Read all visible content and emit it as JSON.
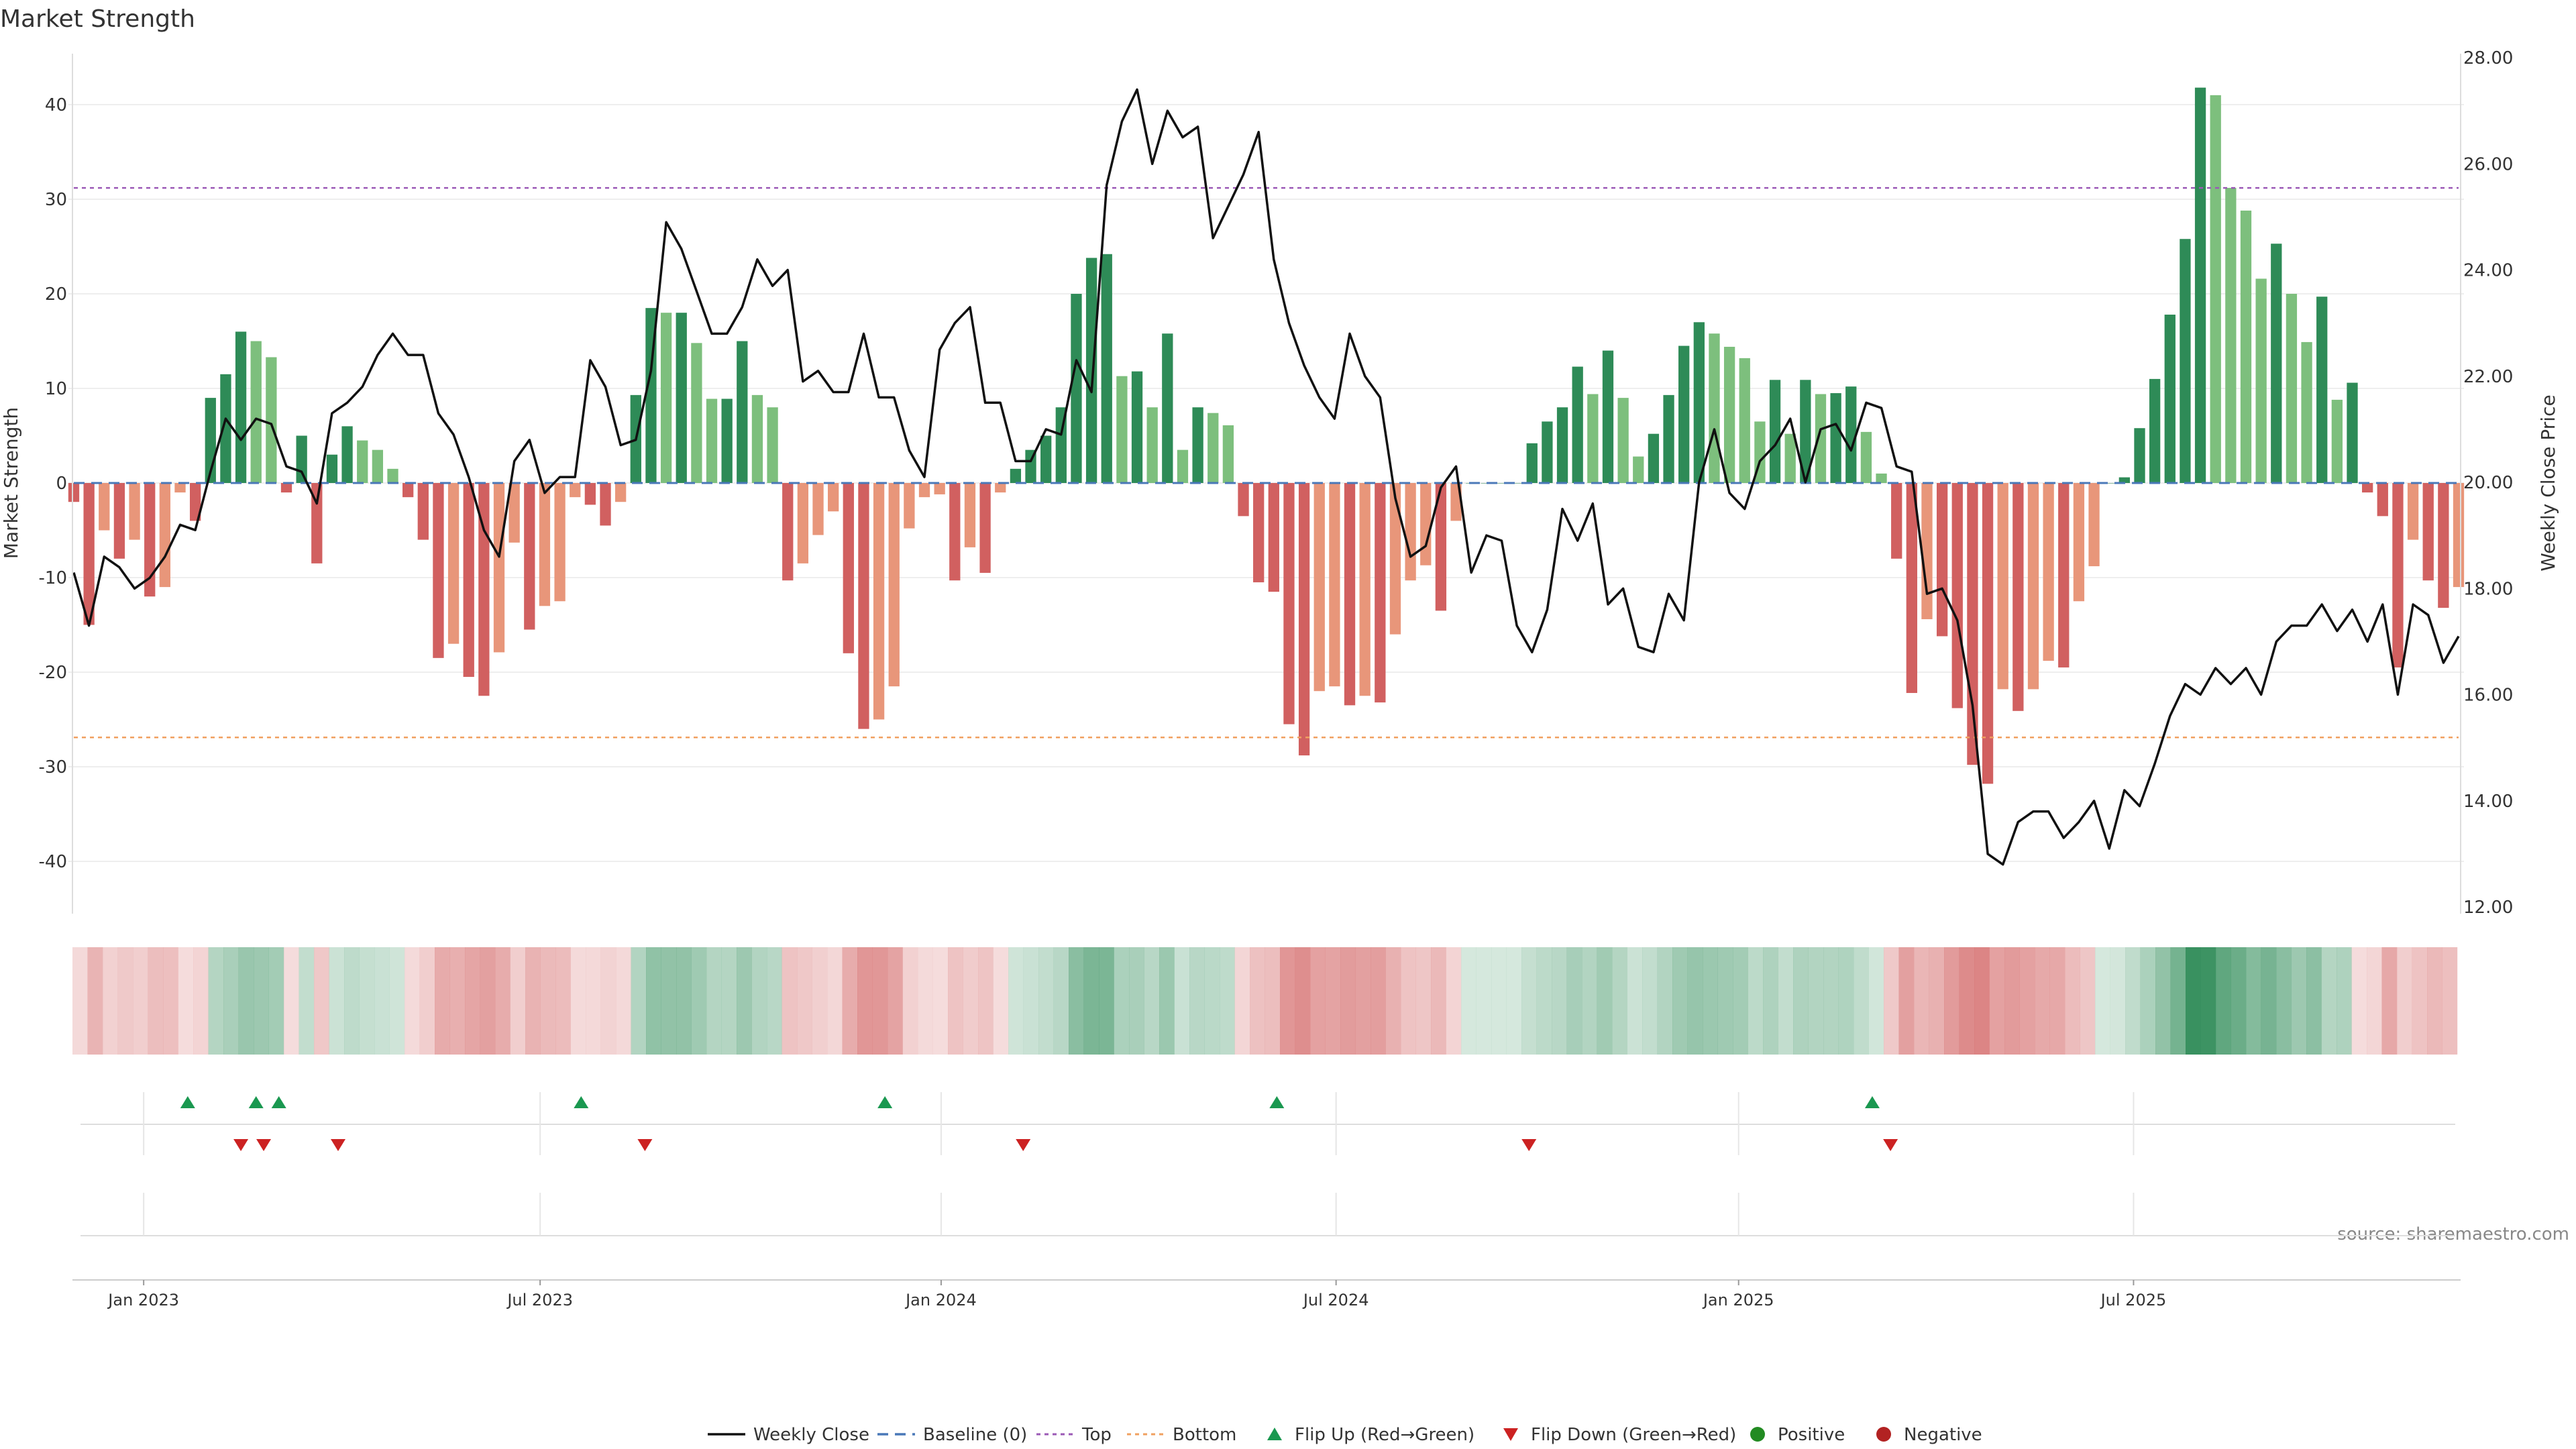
{
  "chart_data": {
    "type": "bar+line",
    "title": "Market Strength",
    "ylabel_left": "Market Strength",
    "ylabel_right": "Weekly Close Price",
    "ylim_left": [
      -44,
      45
    ],
    "ylim_right": [
      12.0,
      28.0
    ],
    "left_ticks": [
      -40,
      -30,
      -20,
      -10,
      0,
      10,
      20,
      30,
      40
    ],
    "right_ticks": [
      "12.00",
      "14.00",
      "16.00",
      "18.00",
      "20.00",
      "22.00",
      "24.00",
      "26.00",
      "28.00"
    ],
    "x_start_week": "2022-12-02",
    "x_ticks": [
      {
        "label": "Jan 2023",
        "week": 4.6
      },
      {
        "label": "Jul 2023",
        "week": 30.7
      },
      {
        "label": "Jan 2024",
        "week": 57.1
      },
      {
        "label": "Jul 2024",
        "week": 83.1
      },
      {
        "label": "Jan 2025",
        "week": 109.6
      },
      {
        "label": "Jul 2025",
        "week": 135.6
      }
    ],
    "top_line": 31.2,
    "bottom_line": -26.9,
    "baseline": 0,
    "strength": [
      -2,
      -15,
      -5,
      -8,
      -6,
      -12,
      -11,
      -1,
      -4,
      9,
      11.5,
      16,
      15,
      13.3,
      -1,
      5,
      -8.5,
      3,
      6,
      4.5,
      3.5,
      1.5,
      -1.5,
      -6,
      -18.5,
      -17,
      -20.5,
      -22.5,
      -17.9,
      -6.3,
      -15.5,
      -13,
      -12.5,
      -1.5,
      -2.3,
      -4.5,
      -2,
      9.3,
      18.5,
      18,
      18,
      14.8,
      8.9,
      8.9,
      15,
      9.3,
      8,
      -10.3,
      -8.5,
      -5.5,
      -3,
      -18,
      -26,
      -25,
      -21.5,
      -4.8,
      -1.5,
      -1.2,
      -10.3,
      -6.8,
      -9.5,
      -1,
      1.5,
      3.5,
      5,
      8,
      20,
      23.8,
      24.2,
      11.3,
      11.8,
      8,
      15.8,
      3.5,
      8,
      7.4,
      6.1,
      -3.5,
      -10.5,
      -11.5,
      -25.5,
      -28.8,
      -22,
      -21.5,
      -23.5,
      -22.5,
      -23.2,
      -16,
      -10.3,
      -8.7,
      -13.5,
      -4,
      0,
      0,
      0,
      0,
      4.2,
      6.5,
      8,
      12.3,
      9.4,
      14,
      9,
      2.8,
      5.2,
      9.3,
      14.5,
      17,
      15.8,
      14.4,
      13.2,
      6.5,
      10.9,
      5.2,
      10.9,
      9.4,
      9.5,
      10.2,
      5.4,
      1,
      -8,
      -22.2,
      -14.4,
      -16.2,
      -23.8,
      -29.8,
      -31.8,
      -21.8,
      -24.1,
      -21.8,
      -18.8,
      -19.5,
      -12.5,
      -8.8,
      0,
      0.6,
      5.8,
      11,
      17.8,
      25.8,
      41.8,
      41,
      31.2,
      28.8,
      21.6,
      25.3,
      20,
      14.9,
      19.7,
      8.8,
      10.6,
      -1,
      -3.5,
      -19.5,
      -6,
      -10.3,
      -13.2,
      -11
    ],
    "price": [
      18.3,
      17.3,
      18.6,
      18.4,
      18,
      18.2,
      18.6,
      19.2,
      19.1,
      20.2,
      21.2,
      20.8,
      21.2,
      21.1,
      20.3,
      20.2,
      19.6,
      21.3,
      21.5,
      21.8,
      22.4,
      22.8,
      22.4,
      22.4,
      21.3,
      20.9,
      20.1,
      19.1,
      18.6,
      20.4,
      20.8,
      19.8,
      20.1,
      20.1,
      22.3,
      21.8,
      20.7,
      20.8,
      22.1,
      24.9,
      24.4,
      23.6,
      22.8,
      22.8,
      23.3,
      24.2,
      23.7,
      24,
      21.9,
      22.1,
      21.7,
      21.7,
      22.8,
      21.6,
      21.6,
      20.6,
      20.1,
      22.5,
      23,
      23.3,
      21.5,
      21.5,
      20.4,
      20.4,
      21,
      20.9,
      22.3,
      21.7,
      25.6,
      26.8,
      27.4,
      26,
      27,
      26.5,
      26.7,
      24.6,
      25.2,
      25.8,
      26.6,
      24.2,
      23,
      22.2,
      21.6,
      21.2,
      22.8,
      22,
      21.6,
      19.7,
      18.6,
      18.8,
      19.9,
      20.3,
      18.3,
      19,
      18.9,
      17.3,
      16.8,
      17.6,
      19.5,
      18.9,
      19.6,
      17.7,
      18,
      16.9,
      16.8,
      17.9,
      17.4,
      20,
      21,
      19.8,
      19.5,
      20.4,
      20.7,
      21.2,
      20,
      21,
      21.1,
      20.6,
      21.5,
      21.4,
      20.3,
      20.2,
      17.9,
      18,
      17.4,
      15.8,
      13,
      12.8,
      13.6,
      13.8,
      13.8,
      13.3,
      13.6,
      14,
      13.1,
      14.2,
      13.9,
      14.7,
      15.6,
      16.2,
      16,
      16.5,
      16.2,
      16.5,
      16,
      17,
      17.3,
      17.3,
      17.7,
      17.2,
      17.6,
      17,
      17.7,
      16,
      17.7,
      17.5,
      16.6,
      17.1
    ],
    "flip_up_weeks": [
      7.5,
      12,
      13.5,
      33.4,
      53.4,
      79.2,
      118.4
    ],
    "flip_down_weeks": [
      11,
      12.5,
      17.4,
      37.6,
      62.5,
      95.8,
      119.6
    ],
    "legend": [
      "Weekly Close",
      "Baseline (0)",
      "Top",
      "Bottom",
      "Flip Up (Red→Green)",
      "Flip Down (Green→Red)",
      "Positive",
      "Negative"
    ],
    "source": "source: sharemaestro.com"
  },
  "colors": {
    "pos_strong": "#2e8b57",
    "pos_light": "#7dbf7d",
    "neg_strong": "#d16060",
    "neg_light": "#e8967a",
    "line": "#111111",
    "top": "#9b59b6",
    "bottom": "#f0a060",
    "baseline": "#4a78b8",
    "flip_up": "#1a9850",
    "flip_down": "#cc2222",
    "positive_dot": "#228b22",
    "negative_dot": "#b22222",
    "grid": "#eeeeee",
    "axis_text": "#333333"
  }
}
